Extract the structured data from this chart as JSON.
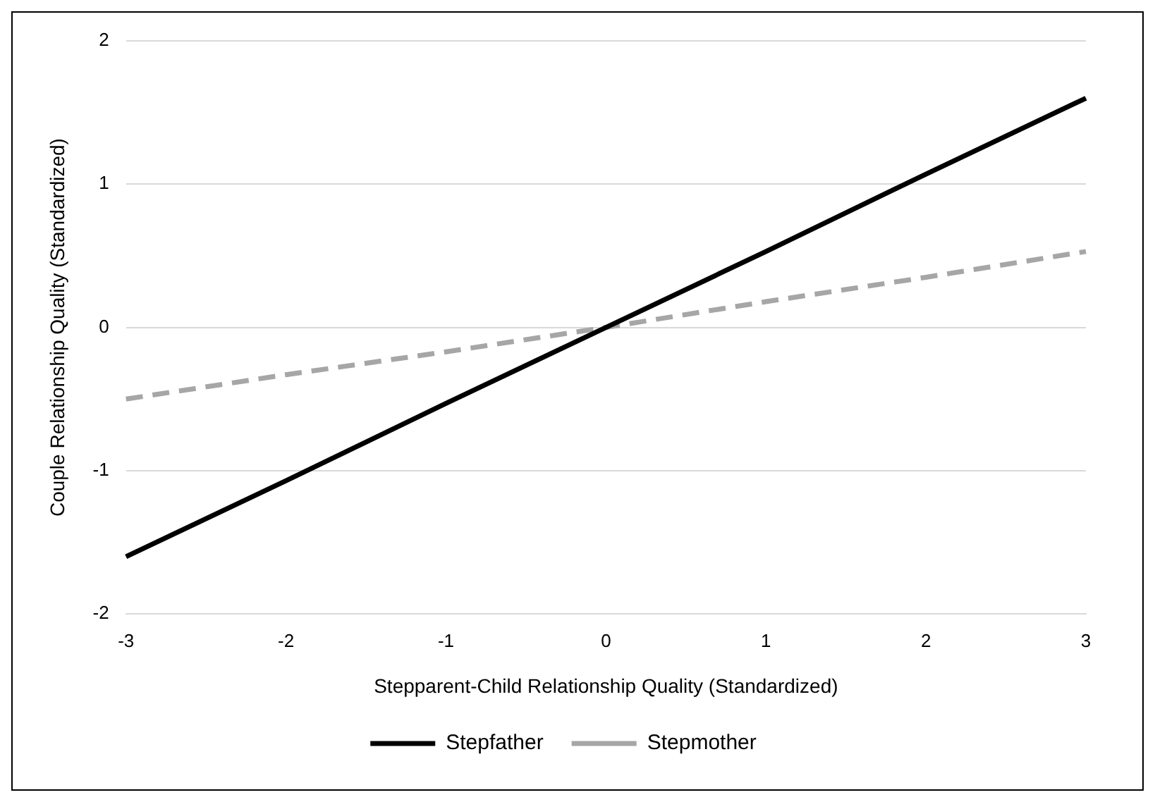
{
  "chart_data": {
    "type": "line",
    "xlabel": "Stepparent-Child Relationship Quality (Standardized)",
    "ylabel": "Couple Relationship Quality (Standardized)",
    "categories": [
      "-3",
      "-2",
      "-1",
      "0",
      "1",
      "2",
      "3"
    ],
    "series": [
      {
        "name": "Stepfather",
        "color": "#000000",
        "line_style": "solid",
        "values": [
          -1.6,
          -1.07,
          -0.53,
          0,
          0.53,
          1.07,
          1.6
        ]
      },
      {
        "name": "Stepmother",
        "color": "#a6a6a6",
        "line_style": "dashed",
        "values": [
          -0.5,
          -0.33,
          -0.17,
          0,
          0.18,
          0.35,
          0.53
        ]
      }
    ],
    "ylim": [
      -2,
      2
    ],
    "yticks": [
      -2,
      -1,
      0,
      1,
      2
    ],
    "grid": "y",
    "legend": "bottom",
    "marker": "none"
  }
}
